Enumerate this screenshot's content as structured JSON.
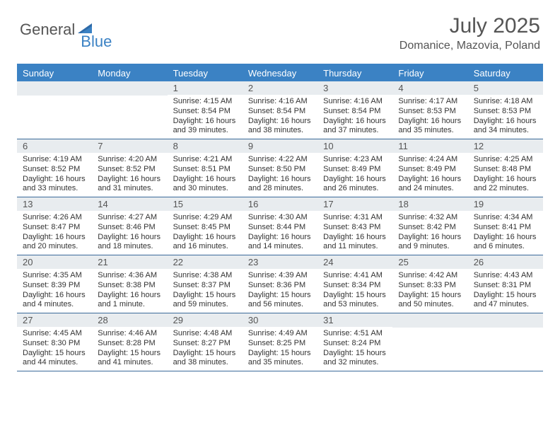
{
  "logo": {
    "word1": "General",
    "word2": "Blue"
  },
  "title": "July 2025",
  "location": "Domanice, Mazovia, Poland",
  "colors": {
    "header_bg": "#3b82c4",
    "header_text": "#ffffff",
    "daynum_bg": "#e8ecef",
    "text": "#333333",
    "rule": "#3b6a9a"
  },
  "day_names": [
    "Sunday",
    "Monday",
    "Tuesday",
    "Wednesday",
    "Thursday",
    "Friday",
    "Saturday"
  ],
  "weeks": [
    [
      null,
      null,
      {
        "n": "1",
        "sr": "Sunrise: 4:15 AM",
        "ss": "Sunset: 8:54 PM",
        "dl": "Daylight: 16 hours and 39 minutes."
      },
      {
        "n": "2",
        "sr": "Sunrise: 4:16 AM",
        "ss": "Sunset: 8:54 PM",
        "dl": "Daylight: 16 hours and 38 minutes."
      },
      {
        "n": "3",
        "sr": "Sunrise: 4:16 AM",
        "ss": "Sunset: 8:54 PM",
        "dl": "Daylight: 16 hours and 37 minutes."
      },
      {
        "n": "4",
        "sr": "Sunrise: 4:17 AM",
        "ss": "Sunset: 8:53 PM",
        "dl": "Daylight: 16 hours and 35 minutes."
      },
      {
        "n": "5",
        "sr": "Sunrise: 4:18 AM",
        "ss": "Sunset: 8:53 PM",
        "dl": "Daylight: 16 hours and 34 minutes."
      }
    ],
    [
      {
        "n": "6",
        "sr": "Sunrise: 4:19 AM",
        "ss": "Sunset: 8:52 PM",
        "dl": "Daylight: 16 hours and 33 minutes."
      },
      {
        "n": "7",
        "sr": "Sunrise: 4:20 AM",
        "ss": "Sunset: 8:52 PM",
        "dl": "Daylight: 16 hours and 31 minutes."
      },
      {
        "n": "8",
        "sr": "Sunrise: 4:21 AM",
        "ss": "Sunset: 8:51 PM",
        "dl": "Daylight: 16 hours and 30 minutes."
      },
      {
        "n": "9",
        "sr": "Sunrise: 4:22 AM",
        "ss": "Sunset: 8:50 PM",
        "dl": "Daylight: 16 hours and 28 minutes."
      },
      {
        "n": "10",
        "sr": "Sunrise: 4:23 AM",
        "ss": "Sunset: 8:49 PM",
        "dl": "Daylight: 16 hours and 26 minutes."
      },
      {
        "n": "11",
        "sr": "Sunrise: 4:24 AM",
        "ss": "Sunset: 8:49 PM",
        "dl": "Daylight: 16 hours and 24 minutes."
      },
      {
        "n": "12",
        "sr": "Sunrise: 4:25 AM",
        "ss": "Sunset: 8:48 PM",
        "dl": "Daylight: 16 hours and 22 minutes."
      }
    ],
    [
      {
        "n": "13",
        "sr": "Sunrise: 4:26 AM",
        "ss": "Sunset: 8:47 PM",
        "dl": "Daylight: 16 hours and 20 minutes."
      },
      {
        "n": "14",
        "sr": "Sunrise: 4:27 AM",
        "ss": "Sunset: 8:46 PM",
        "dl": "Daylight: 16 hours and 18 minutes."
      },
      {
        "n": "15",
        "sr": "Sunrise: 4:29 AM",
        "ss": "Sunset: 8:45 PM",
        "dl": "Daylight: 16 hours and 16 minutes."
      },
      {
        "n": "16",
        "sr": "Sunrise: 4:30 AM",
        "ss": "Sunset: 8:44 PM",
        "dl": "Daylight: 16 hours and 14 minutes."
      },
      {
        "n": "17",
        "sr": "Sunrise: 4:31 AM",
        "ss": "Sunset: 8:43 PM",
        "dl": "Daylight: 16 hours and 11 minutes."
      },
      {
        "n": "18",
        "sr": "Sunrise: 4:32 AM",
        "ss": "Sunset: 8:42 PM",
        "dl": "Daylight: 16 hours and 9 minutes."
      },
      {
        "n": "19",
        "sr": "Sunrise: 4:34 AM",
        "ss": "Sunset: 8:41 PM",
        "dl": "Daylight: 16 hours and 6 minutes."
      }
    ],
    [
      {
        "n": "20",
        "sr": "Sunrise: 4:35 AM",
        "ss": "Sunset: 8:39 PM",
        "dl": "Daylight: 16 hours and 4 minutes."
      },
      {
        "n": "21",
        "sr": "Sunrise: 4:36 AM",
        "ss": "Sunset: 8:38 PM",
        "dl": "Daylight: 16 hours and 1 minute."
      },
      {
        "n": "22",
        "sr": "Sunrise: 4:38 AM",
        "ss": "Sunset: 8:37 PM",
        "dl": "Daylight: 15 hours and 59 minutes."
      },
      {
        "n": "23",
        "sr": "Sunrise: 4:39 AM",
        "ss": "Sunset: 8:36 PM",
        "dl": "Daylight: 15 hours and 56 minutes."
      },
      {
        "n": "24",
        "sr": "Sunrise: 4:41 AM",
        "ss": "Sunset: 8:34 PM",
        "dl": "Daylight: 15 hours and 53 minutes."
      },
      {
        "n": "25",
        "sr": "Sunrise: 4:42 AM",
        "ss": "Sunset: 8:33 PM",
        "dl": "Daylight: 15 hours and 50 minutes."
      },
      {
        "n": "26",
        "sr": "Sunrise: 4:43 AM",
        "ss": "Sunset: 8:31 PM",
        "dl": "Daylight: 15 hours and 47 minutes."
      }
    ],
    [
      {
        "n": "27",
        "sr": "Sunrise: 4:45 AM",
        "ss": "Sunset: 8:30 PM",
        "dl": "Daylight: 15 hours and 44 minutes."
      },
      {
        "n": "28",
        "sr": "Sunrise: 4:46 AM",
        "ss": "Sunset: 8:28 PM",
        "dl": "Daylight: 15 hours and 41 minutes."
      },
      {
        "n": "29",
        "sr": "Sunrise: 4:48 AM",
        "ss": "Sunset: 8:27 PM",
        "dl": "Daylight: 15 hours and 38 minutes."
      },
      {
        "n": "30",
        "sr": "Sunrise: 4:49 AM",
        "ss": "Sunset: 8:25 PM",
        "dl": "Daylight: 15 hours and 35 minutes."
      },
      {
        "n": "31",
        "sr": "Sunrise: 4:51 AM",
        "ss": "Sunset: 8:24 PM",
        "dl": "Daylight: 15 hours and 32 minutes."
      },
      null,
      null
    ]
  ]
}
